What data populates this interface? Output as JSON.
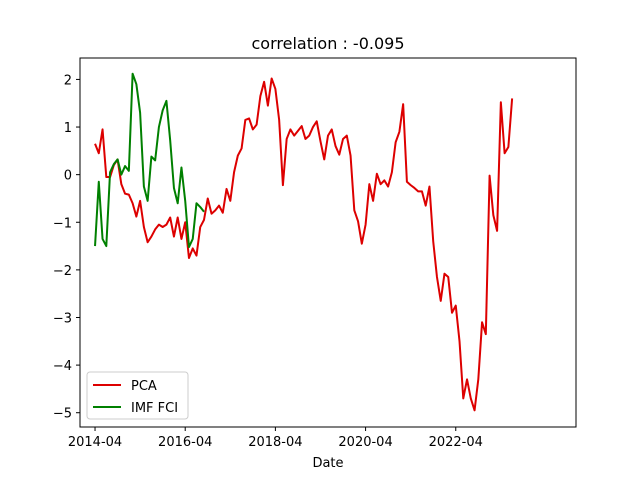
{
  "chart_data": {
    "type": "line",
    "title": "correlation : -0.095",
    "xlabel": "Date",
    "ylabel": "",
    "xlim": [
      "2013-12-01",
      "2024-12-01"
    ],
    "ylim": [
      -5.3,
      2.45
    ],
    "x_ticks": [
      "2014-04",
      "2016-04",
      "2018-04",
      "2020-04",
      "2022-04"
    ],
    "y_ticks": [
      2,
      1,
      0,
      -1,
      -2,
      -3,
      -4,
      -5
    ],
    "y_tick_labels": [
      "2",
      "1",
      "0",
      "−1",
      "−2",
      "−3",
      "−4",
      "−5"
    ],
    "grid": false,
    "legend_position": "lower-left",
    "series": [
      {
        "name": "PCA",
        "color": "#dd0000",
        "points": [
          [
            "2014-04",
            0.65
          ],
          [
            "2014-05",
            0.45
          ],
          [
            "2014-06",
            0.95
          ],
          [
            "2014-07",
            -0.05
          ],
          [
            "2014-08",
            -0.05
          ],
          [
            "2014-09",
            0.2
          ],
          [
            "2014-10",
            0.32
          ],
          [
            "2014-11",
            -0.2
          ],
          [
            "2014-12",
            -0.4
          ],
          [
            "2015-01",
            -0.42
          ],
          [
            "2015-02",
            -0.6
          ],
          [
            "2015-03",
            -0.88
          ],
          [
            "2015-04",
            -0.55
          ],
          [
            "2015-05",
            -1.1
          ],
          [
            "2015-06",
            -1.42
          ],
          [
            "2015-07",
            -1.3
          ],
          [
            "2015-08",
            -1.15
          ],
          [
            "2015-09",
            -1.05
          ],
          [
            "2015-10",
            -1.1
          ],
          [
            "2015-11",
            -1.05
          ],
          [
            "2015-12",
            -0.9
          ],
          [
            "2016-01",
            -1.3
          ],
          [
            "2016-02",
            -0.9
          ],
          [
            "2016-03",
            -1.35
          ],
          [
            "2016-04",
            -1.0
          ],
          [
            "2016-05",
            -1.75
          ],
          [
            "2016-06",
            -1.55
          ],
          [
            "2016-07",
            -1.7
          ],
          [
            "2016-08",
            -1.1
          ],
          [
            "2016-09",
            -0.95
          ],
          [
            "2016-10",
            -0.5
          ],
          [
            "2016-11",
            -0.82
          ],
          [
            "2016-12",
            -0.75
          ],
          [
            "2017-01",
            -0.65
          ],
          [
            "2017-02",
            -0.8
          ],
          [
            "2017-03",
            -0.3
          ],
          [
            "2017-04",
            -0.55
          ],
          [
            "2017-05",
            0.05
          ],
          [
            "2017-06",
            0.4
          ],
          [
            "2017-07",
            0.55
          ],
          [
            "2017-08",
            1.15
          ],
          [
            "2017-09",
            1.18
          ],
          [
            "2017-10",
            0.95
          ],
          [
            "2017-11",
            1.05
          ],
          [
            "2017-12",
            1.65
          ],
          [
            "2018-01",
            1.95
          ],
          [
            "2018-02",
            1.45
          ],
          [
            "2018-03",
            2.02
          ],
          [
            "2018-04",
            1.8
          ],
          [
            "2018-05",
            1.15
          ],
          [
            "2018-06",
            -0.22
          ],
          [
            "2018-07",
            0.75
          ],
          [
            "2018-08",
            0.95
          ],
          [
            "2018-09",
            0.82
          ],
          [
            "2018-10",
            0.92
          ],
          [
            "2018-11",
            1.02
          ],
          [
            "2018-12",
            0.75
          ],
          [
            "2019-01",
            0.82
          ],
          [
            "2019-02",
            1.0
          ],
          [
            "2019-03",
            1.12
          ],
          [
            "2019-04",
            0.7
          ],
          [
            "2019-05",
            0.32
          ],
          [
            "2019-06",
            0.82
          ],
          [
            "2019-07",
            0.95
          ],
          [
            "2019-08",
            0.6
          ],
          [
            "2019-09",
            0.42
          ],
          [
            "2019-10",
            0.75
          ],
          [
            "2019-11",
            0.82
          ],
          [
            "2019-12",
            0.4
          ],
          [
            "2020-01",
            -0.75
          ],
          [
            "2020-02",
            -0.98
          ],
          [
            "2020-03",
            -1.45
          ],
          [
            "2020-04",
            -1.05
          ],
          [
            "2020-05",
            -0.2
          ],
          [
            "2020-06",
            -0.55
          ],
          [
            "2020-07",
            0.02
          ],
          [
            "2020-08",
            -0.2
          ],
          [
            "2020-09",
            -0.12
          ],
          [
            "2020-10",
            -0.25
          ],
          [
            "2020-11",
            0.05
          ],
          [
            "2020-12",
            0.68
          ],
          [
            "2021-01",
            0.9
          ],
          [
            "2021-02",
            1.48
          ],
          [
            "2021-03",
            -0.15
          ],
          [
            "2021-04",
            -0.22
          ],
          [
            "2021-05",
            -0.28
          ],
          [
            "2021-06",
            -0.35
          ],
          [
            "2021-07",
            -0.35
          ],
          [
            "2021-08",
            -0.65
          ],
          [
            "2021-09",
            -0.25
          ],
          [
            "2021-10",
            -1.4
          ],
          [
            "2021-11",
            -2.15
          ],
          [
            "2021-12",
            -2.65
          ],
          [
            "2022-01",
            -2.08
          ],
          [
            "2022-02",
            -2.15
          ],
          [
            "2022-03",
            -2.9
          ],
          [
            "2022-04",
            -2.75
          ],
          [
            "2022-05",
            -3.5
          ],
          [
            "2022-06",
            -4.7
          ],
          [
            "2022-07",
            -4.3
          ],
          [
            "2022-08",
            -4.7
          ],
          [
            "2022-09",
            -4.95
          ],
          [
            "2022-10",
            -4.3
          ],
          [
            "2022-11",
            -3.1
          ],
          [
            "2022-12",
            -3.35
          ],
          [
            "2023-01",
            -0.02
          ],
          [
            "2023-02",
            -0.85
          ],
          [
            "2023-03",
            -1.18
          ],
          [
            "2023-04",
            1.52
          ],
          [
            "2023-05",
            0.45
          ],
          [
            "2023-06",
            0.58
          ],
          [
            "2023-07",
            1.6
          ]
        ]
      },
      {
        "name": "IMF FCI",
        "color": "#008000",
        "points": [
          [
            "2014-04",
            -1.5
          ],
          [
            "2014-05",
            -0.15
          ],
          [
            "2014-06",
            -1.35
          ],
          [
            "2014-07",
            -1.5
          ],
          [
            "2014-08",
            0.05
          ],
          [
            "2014-09",
            0.22
          ],
          [
            "2014-10",
            0.32
          ],
          [
            "2014-11",
            0.0
          ],
          [
            "2014-12",
            0.18
          ],
          [
            "2015-01",
            0.08
          ],
          [
            "2015-02",
            2.12
          ],
          [
            "2015-03",
            1.9
          ],
          [
            "2015-04",
            1.3
          ],
          [
            "2015-05",
            -0.25
          ],
          [
            "2015-06",
            -0.55
          ],
          [
            "2015-07",
            0.38
          ],
          [
            "2015-08",
            0.3
          ],
          [
            "2015-09",
            1.0
          ],
          [
            "2015-10",
            1.35
          ],
          [
            "2015-11",
            1.55
          ],
          [
            "2015-12",
            0.72
          ],
          [
            "2016-01",
            -0.28
          ],
          [
            "2016-02",
            -0.6
          ],
          [
            "2016-03",
            0.15
          ],
          [
            "2016-04",
            -0.55
          ],
          [
            "2016-05",
            -1.52
          ],
          [
            "2016-06",
            -1.35
          ],
          [
            "2016-07",
            -0.6
          ],
          [
            "2016-08",
            -0.68
          ],
          [
            "2016-09",
            -0.78
          ]
        ]
      }
    ]
  }
}
